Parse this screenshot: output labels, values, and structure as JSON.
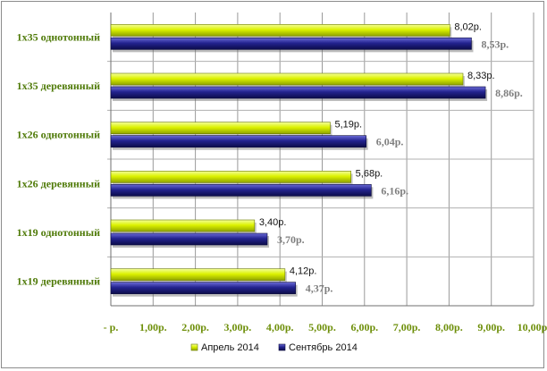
{
  "chart_data": {
    "type": "bar",
    "orientation": "horizontal",
    "categories": [
      "1х35 однотонный",
      "1х35 деревянный",
      "1х26 однотонный",
      "1х26 деревянный",
      "1х19 однотонный",
      "1х19 деревянный"
    ],
    "series": [
      {
        "name": "Апрель 2014",
        "values": [
          8.02,
          8.33,
          5.19,
          5.68,
          3.4,
          4.12
        ],
        "labels": [
          "8,02р.",
          "8,33р.",
          "5,19р.",
          "5,68р.",
          "3,40р.",
          "4,12р."
        ],
        "color": "#d8f000"
      },
      {
        "name": "Сентябрь 2014",
        "values": [
          8.53,
          8.86,
          6.04,
          6.16,
          3.7,
          4.37
        ],
        "labels": [
          "8,53р.",
          "8,86р.",
          "6,04р.",
          "6,16р.",
          "3,70р.",
          "4,37р."
        ],
        "color": "#1f1f8a"
      }
    ],
    "xlim": [
      0,
      10
    ],
    "x_ticks": [
      0,
      1,
      2,
      3,
      4,
      5,
      6,
      7,
      8,
      9,
      10
    ],
    "x_tick_labels": [
      "- р.",
      "1,00р.",
      "2,00р.",
      "3,00р.",
      "4,00р.",
      "5,00р.",
      "6,00р.",
      "7,00р.",
      "8,00р.",
      "9,00р.",
      "10,00р."
    ],
    "grid": "vertical",
    "legend_position": "bottom",
    "title": "",
    "xlabel": "",
    "ylabel": ""
  }
}
